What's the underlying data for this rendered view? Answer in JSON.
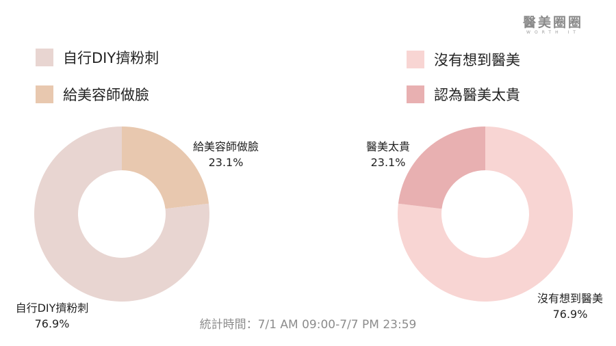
{
  "brand": {
    "name": "醫美圈圈",
    "tagline": "WORTH IT"
  },
  "footer": {
    "stat_period": "統計時間：7/1 AM 09:00-7/7 PM 23:59"
  },
  "chart_data": [
    {
      "type": "pie",
      "donut": true,
      "legend_position": "top-left",
      "categories": [
        "自行DIY擠粉刺",
        "給美容師做臉"
      ],
      "values": [
        76.9,
        23.1
      ],
      "value_labels": [
        "76.9%",
        "23.1%"
      ],
      "colors": [
        "#e8d5d1",
        "#e8c8af"
      ]
    },
    {
      "type": "pie",
      "donut": true,
      "legend_position": "top-right",
      "categories": [
        "沒有想到醫美",
        "認為醫美太貴"
      ],
      "values": [
        76.9,
        23.1
      ],
      "value_labels": [
        "76.9%",
        "23.1%"
      ],
      "slice_labels": [
        "沒有想到醫美",
        "醫美太貴"
      ],
      "colors": [
        "#f8d5d3",
        "#e8b0b1"
      ]
    }
  ]
}
